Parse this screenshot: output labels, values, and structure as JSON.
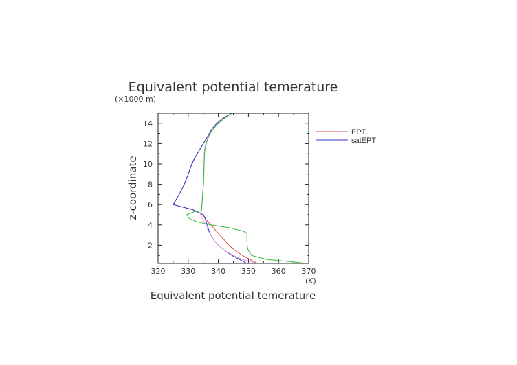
{
  "chart_data": {
    "type": "line",
    "title": "Equivalent potential temerature",
    "xlabel": "Equivalent potential temerature",
    "xunit": "(K)",
    "ylabel": "z-coordinate",
    "yunit": "(×1000 m)",
    "xlim": [
      320,
      370
    ],
    "ylim": [
      0.2,
      15
    ],
    "xticks": [
      320,
      330,
      340,
      350,
      360,
      370
    ],
    "yticks": [
      2,
      4,
      6,
      8,
      10,
      12,
      14
    ],
    "grid": false,
    "legend_position": "right",
    "series": [
      {
        "name": "EPT",
        "color": "#dd4444",
        "points": [
          [
            344.5,
            15
          ],
          [
            341.5,
            14.5
          ],
          [
            339.5,
            14
          ],
          [
            338,
            13.5
          ],
          [
            337,
            13
          ],
          [
            336,
            12.5
          ],
          [
            335,
            12
          ],
          [
            334,
            11.5
          ],
          [
            333,
            11
          ],
          [
            332,
            10.5
          ],
          [
            331.2,
            10
          ],
          [
            330,
            9
          ],
          [
            328.7,
            8
          ],
          [
            327,
            7
          ],
          [
            325,
            6
          ],
          [
            331.5,
            5.5
          ],
          [
            335,
            5.0
          ],
          [
            336,
            4.5
          ],
          [
            337.5,
            4.0
          ],
          [
            339,
            3.5
          ],
          [
            340.5,
            3.0
          ],
          [
            342,
            2.5
          ],
          [
            343.5,
            2.0
          ],
          [
            345.5,
            1.5
          ],
          [
            348,
            1.0
          ],
          [
            350.5,
            0.6
          ],
          [
            353,
            0.2
          ]
        ]
      },
      {
        "name": "satEPT",
        "color": "#3333cc",
        "points": [
          [
            344.5,
            15
          ],
          [
            341.5,
            14.5
          ],
          [
            339.5,
            14
          ],
          [
            338,
            13.5
          ],
          [
            337,
            13
          ],
          [
            336,
            12.5
          ],
          [
            335,
            12
          ],
          [
            334,
            11.5
          ],
          [
            333,
            11
          ],
          [
            332,
            10.5
          ],
          [
            331.2,
            10
          ],
          [
            330,
            9
          ],
          [
            328.7,
            8
          ],
          [
            327,
            7
          ],
          [
            325,
            6
          ],
          [
            331.5,
            5.5
          ],
          [
            335,
            5.0
          ],
          [
            335.8,
            4.5
          ],
          [
            336.3,
            4.0
          ],
          [
            336.8,
            3.5
          ],
          [
            337.5,
            3.0
          ],
          [
            338.5,
            2.5
          ],
          [
            340,
            2.0
          ],
          [
            342,
            1.5
          ],
          [
            344.5,
            1.0
          ],
          [
            347,
            0.6
          ],
          [
            349.5,
            0.2
          ]
        ]
      },
      {
        "name": "",
        "color": "#ee99dd",
        "points": [
          [
            344.5,
            15
          ],
          [
            342,
            14.5
          ],
          [
            340,
            14
          ],
          [
            338.5,
            13.5
          ],
          [
            337.2,
            13
          ],
          [
            336.4,
            12.5
          ],
          [
            335.8,
            12
          ],
          [
            335.5,
            11.5
          ],
          [
            335.3,
            11
          ],
          [
            335.2,
            10
          ],
          [
            335.1,
            9
          ],
          [
            335,
            8
          ],
          [
            334.8,
            7
          ],
          [
            334.6,
            6
          ],
          [
            334.3,
            5.5
          ],
          [
            334,
            5.0
          ],
          [
            335,
            4.5
          ],
          [
            335.8,
            4.0
          ],
          [
            336.5,
            3.5
          ],
          [
            337.5,
            3.0
          ],
          [
            338.5,
            2.5
          ],
          [
            340,
            2.0
          ],
          [
            342,
            1.5
          ],
          [
            345,
            1.0
          ],
          [
            348,
            0.6
          ],
          [
            353,
            0.2
          ]
        ]
      },
      {
        "name": "",
        "color": "#33bb33",
        "points": [
          [
            344.5,
            15
          ],
          [
            342,
            14.5
          ],
          [
            340,
            14
          ],
          [
            338.5,
            13.5
          ],
          [
            337.3,
            13
          ],
          [
            336.5,
            12.5
          ],
          [
            336,
            12
          ],
          [
            335.6,
            11.5
          ],
          [
            335.4,
            11
          ],
          [
            335.3,
            10
          ],
          [
            335.2,
            9
          ],
          [
            335.1,
            8
          ],
          [
            334.8,
            7
          ],
          [
            334.6,
            6
          ],
          [
            334.4,
            5.4
          ],
          [
            332,
            5.3
          ],
          [
            329.5,
            5.0
          ],
          [
            330.5,
            4.6
          ],
          [
            333,
            4.3
          ],
          [
            337.5,
            4.0
          ],
          [
            344,
            3.7
          ],
          [
            348,
            3.4
          ],
          [
            349.5,
            3.2
          ],
          [
            349.5,
            2.5
          ],
          [
            349.6,
            2.0
          ],
          [
            349.8,
            1.6
          ],
          [
            351,
            1.0
          ],
          [
            356,
            0.6
          ],
          [
            363,
            0.4
          ],
          [
            369.5,
            0.2
          ]
        ]
      }
    ]
  }
}
